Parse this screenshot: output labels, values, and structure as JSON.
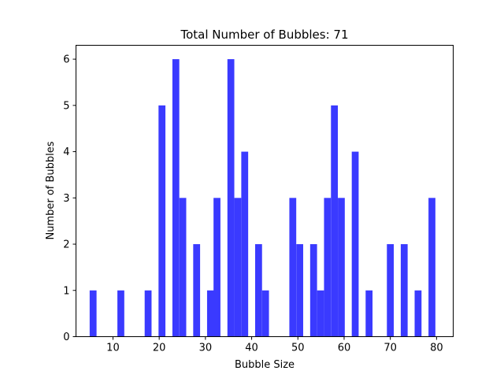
{
  "chart_data": {
    "type": "bar",
    "title": "Total Number of Bubbles: 71",
    "xlabel": "Bubble Size",
    "ylabel": "Number of Bubbles",
    "xlim": [
      2.0,
      83.6
    ],
    "ylim": [
      0,
      6.3
    ],
    "x_ticks": [
      10,
      20,
      30,
      40,
      50,
      60,
      70,
      80
    ],
    "y_ticks": [
      0,
      1,
      2,
      3,
      4,
      5,
      6
    ],
    "grid": false,
    "bar_color": "#3a3aff",
    "bin_width": 1.49,
    "bars": [
      {
        "x": 5.7,
        "count": 1
      },
      {
        "x": 11.7,
        "count": 1
      },
      {
        "x": 17.6,
        "count": 1
      },
      {
        "x": 20.6,
        "count": 5
      },
      {
        "x": 23.6,
        "count": 6
      },
      {
        "x": 25.1,
        "count": 3
      },
      {
        "x": 28.1,
        "count": 2
      },
      {
        "x": 31.1,
        "count": 1
      },
      {
        "x": 32.5,
        "count": 3
      },
      {
        "x": 35.5,
        "count": 6
      },
      {
        "x": 37.0,
        "count": 3
      },
      {
        "x": 38.5,
        "count": 4
      },
      {
        "x": 41.5,
        "count": 2
      },
      {
        "x": 43.0,
        "count": 1
      },
      {
        "x": 48.9,
        "count": 3
      },
      {
        "x": 50.4,
        "count": 2
      },
      {
        "x": 53.4,
        "count": 2
      },
      {
        "x": 54.9,
        "count": 1
      },
      {
        "x": 56.4,
        "count": 3
      },
      {
        "x": 57.9,
        "count": 5
      },
      {
        "x": 59.4,
        "count": 3
      },
      {
        "x": 62.4,
        "count": 4
      },
      {
        "x": 65.4,
        "count": 1
      },
      {
        "x": 70.0,
        "count": 2
      },
      {
        "x": 73.0,
        "count": 2
      },
      {
        "x": 76.0,
        "count": 1
      },
      {
        "x": 79.0,
        "count": 3
      }
    ]
  }
}
